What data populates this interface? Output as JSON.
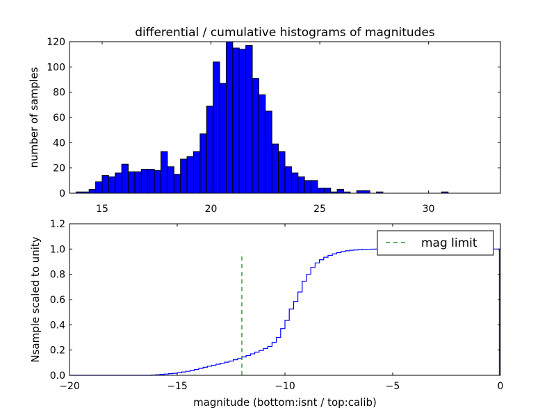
{
  "chart_data": [
    {
      "type": "bar",
      "title": "differential / cumulative histograms of magnitudes",
      "xlabel": "",
      "ylabel": "number of samples",
      "xlim": [
        13.5,
        33.3
      ],
      "ylim": [
        0,
        120
      ],
      "xticks": [
        15,
        20,
        25,
        30
      ],
      "yticks": [
        0,
        20,
        40,
        60,
        80,
        100,
        120
      ],
      "bar_color": "#0000ff",
      "edge_color": "#000000",
      "bin_width": 0.3,
      "bins": [
        [
          13.8,
          1
        ],
        [
          14.1,
          1
        ],
        [
          14.4,
          3
        ],
        [
          14.7,
          9
        ],
        [
          15.0,
          14
        ],
        [
          15.3,
          13
        ],
        [
          15.6,
          16
        ],
        [
          15.9,
          23
        ],
        [
          16.2,
          17
        ],
        [
          16.5,
          17
        ],
        [
          16.8,
          19
        ],
        [
          17.1,
          19
        ],
        [
          17.4,
          18
        ],
        [
          17.7,
          33
        ],
        [
          18.0,
          21
        ],
        [
          18.3,
          15
        ],
        [
          18.6,
          27
        ],
        [
          18.9,
          29
        ],
        [
          19.2,
          33
        ],
        [
          19.5,
          47
        ],
        [
          19.8,
          69
        ],
        [
          20.1,
          104
        ],
        [
          20.4,
          87
        ],
        [
          20.7,
          120
        ],
        [
          21.0,
          115
        ],
        [
          21.3,
          114
        ],
        [
          21.6,
          117
        ],
        [
          21.9,
          91
        ],
        [
          22.2,
          78
        ],
        [
          22.5,
          65
        ],
        [
          22.8,
          39
        ],
        [
          23.1,
          33
        ],
        [
          23.4,
          21
        ],
        [
          23.7,
          16
        ],
        [
          24.0,
          13
        ],
        [
          24.3,
          10
        ],
        [
          24.6,
          10
        ],
        [
          24.9,
          4
        ],
        [
          25.2,
          4
        ],
        [
          25.5,
          1
        ],
        [
          25.8,
          3
        ],
        [
          26.1,
          1
        ],
        [
          26.4,
          0
        ],
        [
          26.7,
          2
        ],
        [
          27.0,
          2
        ],
        [
          27.3,
          0
        ],
        [
          27.6,
          1
        ],
        [
          27.9,
          0
        ],
        [
          28.2,
          0
        ],
        [
          28.5,
          0
        ],
        [
          28.8,
          0
        ],
        [
          29.1,
          0
        ],
        [
          29.4,
          0
        ],
        [
          29.7,
          0
        ],
        [
          30.0,
          0
        ],
        [
          30.3,
          0
        ],
        [
          30.6,
          1
        ],
        [
          30.9,
          0
        ],
        [
          31.2,
          0
        ],
        [
          31.5,
          0
        ],
        [
          31.8,
          0
        ],
        [
          32.1,
          0
        ],
        [
          32.4,
          0
        ],
        [
          32.7,
          0
        ]
      ]
    },
    {
      "type": "line",
      "title": "",
      "xlabel": "magnitude (bottom:isnt / top:calib)",
      "ylabel": "Nsample scaled to unity",
      "xlim": [
        -20,
        0
      ],
      "ylim": [
        0,
        1.2
      ],
      "xticks": [
        -20,
        -15,
        -10,
        -5,
        0
      ],
      "xtick_labels": [
        "−20",
        "−15",
        "−10",
        "−5",
        "0"
      ],
      "yticks": [
        0.0,
        0.2,
        0.4,
        0.6,
        0.8,
        1.0,
        1.2
      ],
      "ytick_labels": [
        "0.0",
        "0.2",
        "0.4",
        "0.6",
        "0.8",
        "1.0",
        "1.2"
      ],
      "grid": false,
      "legend_position": "top-right",
      "series": [
        {
          "name": "",
          "style": "step",
          "color": "#0000ff",
          "x": [
            -20.0,
            -16.2,
            -16.0,
            -15.8,
            -15.6,
            -15.4,
            -15.2,
            -15.0,
            -14.8,
            -14.6,
            -14.4,
            -14.2,
            -14.0,
            -13.8,
            -13.6,
            -13.4,
            -13.2,
            -13.0,
            -12.8,
            -12.6,
            -12.4,
            -12.2,
            -12.0,
            -11.8,
            -11.6,
            -11.4,
            -11.2,
            -11.0,
            -10.8,
            -10.6,
            -10.4,
            -10.2,
            -10.0,
            -9.8,
            -9.6,
            -9.4,
            -9.2,
            -9.0,
            -8.8,
            -8.6,
            -8.4,
            -8.2,
            -8.0,
            -7.8,
            -7.6,
            -7.4,
            -7.2,
            -7.0,
            -6.8,
            -6.6,
            -6.4,
            -6.2,
            -6.0,
            -5.8,
            -0.05
          ],
          "y": [
            0.0,
            0.002,
            0.004,
            0.007,
            0.01,
            0.013,
            0.016,
            0.02,
            0.026,
            0.032,
            0.038,
            0.046,
            0.055,
            0.064,
            0.072,
            0.08,
            0.088,
            0.096,
            0.104,
            0.113,
            0.123,
            0.133,
            0.145,
            0.157,
            0.17,
            0.183,
            0.197,
            0.212,
            0.228,
            0.26,
            0.3,
            0.37,
            0.435,
            0.525,
            0.585,
            0.66,
            0.745,
            0.8,
            0.855,
            0.89,
            0.915,
            0.935,
            0.95,
            0.962,
            0.972,
            0.98,
            0.986,
            0.99,
            0.993,
            0.995,
            0.997,
            0.998,
            0.999,
            1.0,
            1.0
          ]
        },
        {
          "name": "mag limit",
          "style": "dashed-vertical",
          "color": "#008000",
          "x": [
            -12.0,
            -12.0
          ],
          "y": [
            0.0,
            0.97
          ]
        }
      ],
      "legend_entries": [
        "mag limit"
      ]
    }
  ]
}
